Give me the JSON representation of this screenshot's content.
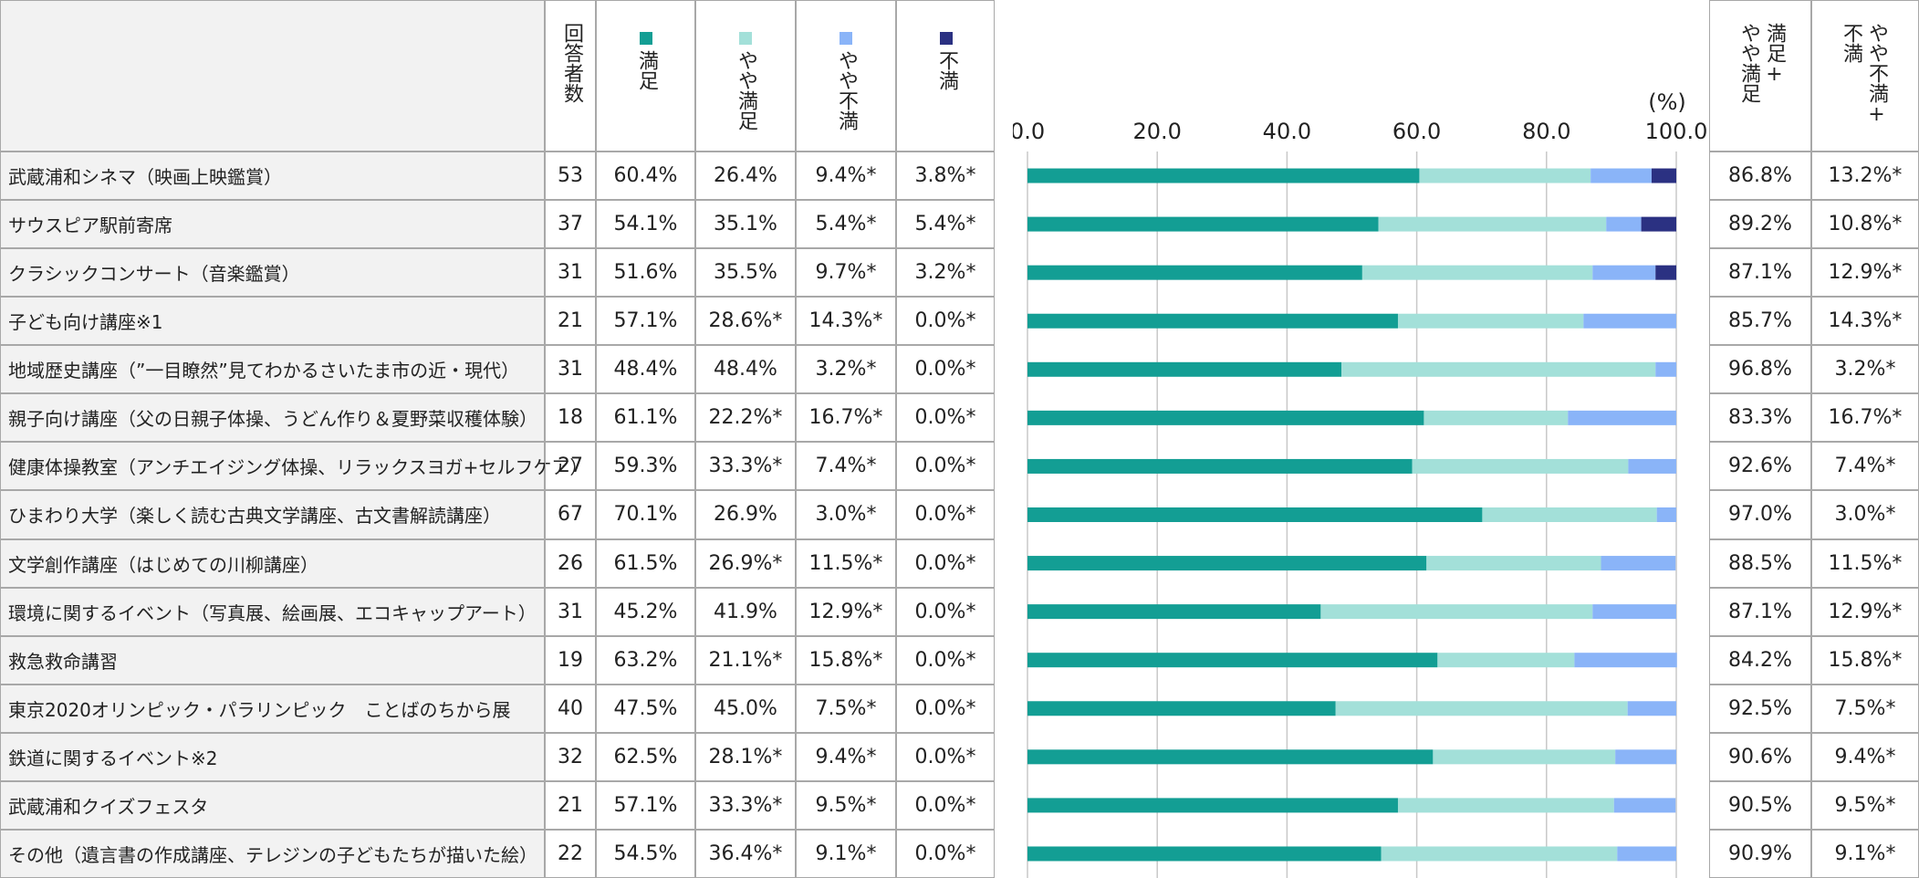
{
  "table": {
    "headers": {
      "n": "回答者数",
      "sum_good": "満足+\nやや満足",
      "sum_bad": "やや不満+\n不満"
    },
    "series": [
      {
        "name": "満足",
        "color": "#139e94"
      },
      {
        "name": "やや満足",
        "color": "#a3e0d9"
      },
      {
        "name": "やや不満",
        "color": "#8ab4f8"
      },
      {
        "name": "不満",
        "color": "#2b3182"
      }
    ],
    "chart": {
      "unit": "(%)",
      "xlim": [
        0,
        100
      ],
      "xticks": [
        {
          "value": 0,
          "label": "0.0"
        },
        {
          "value": 20,
          "label": "20.0"
        },
        {
          "value": 40,
          "label": "40.0"
        },
        {
          "value": 60,
          "label": "60.0"
        },
        {
          "value": 80,
          "label": "80.0"
        },
        {
          "value": 100,
          "label": "100.0"
        }
      ],
      "grid": true
    },
    "rows": [
      {
        "label": "武蔵浦和シネマ（映画上映鑑賞）",
        "n": 53,
        "values": [
          60.4,
          26.4,
          9.4,
          3.8
        ],
        "value_labels": [
          "60.4%",
          "26.4%",
          "9.4%*",
          "3.8%*"
        ],
        "sum_good": "86.8%",
        "sum_bad": "13.2%*"
      },
      {
        "label": "サウスピア駅前寄席",
        "n": 37,
        "values": [
          54.1,
          35.1,
          5.4,
          5.4
        ],
        "value_labels": [
          "54.1%",
          "35.1%",
          "5.4%*",
          "5.4%*"
        ],
        "sum_good": "89.2%",
        "sum_bad": "10.8%*"
      },
      {
        "label": "クラシックコンサート（音楽鑑賞）",
        "n": 31,
        "values": [
          51.6,
          35.5,
          9.7,
          3.2
        ],
        "value_labels": [
          "51.6%",
          "35.5%",
          "9.7%*",
          "3.2%*"
        ],
        "sum_good": "87.1%",
        "sum_bad": "12.9%*"
      },
      {
        "label": "子ども向け講座※1",
        "n": 21,
        "values": [
          57.1,
          28.6,
          14.3,
          0.0
        ],
        "value_labels": [
          "57.1%",
          "28.6%*",
          "14.3%*",
          "0.0%*"
        ],
        "sum_good": "85.7%",
        "sum_bad": "14.3%*"
      },
      {
        "label": "地域歴史講座（”一目瞭然”見てわかるさいたま市の近・現代）",
        "n": 31,
        "values": [
          48.4,
          48.4,
          3.2,
          0.0
        ],
        "value_labels": [
          "48.4%",
          "48.4%",
          "3.2%*",
          "0.0%*"
        ],
        "sum_good": "96.8%",
        "sum_bad": "3.2%*"
      },
      {
        "label": "親子向け講座（父の日親子体操、うどん作り＆夏野菜収穫体験）",
        "n": 18,
        "values": [
          61.1,
          22.2,
          16.7,
          0.0
        ],
        "value_labels": [
          "61.1%",
          "22.2%*",
          "16.7%*",
          "0.0%*"
        ],
        "sum_good": "83.3%",
        "sum_bad": "16.7%*"
      },
      {
        "label": "健康体操教室（アンチエイジング体操、リラックスヨガ+セルフケア）",
        "n": 27,
        "values": [
          59.3,
          33.3,
          7.4,
          0.0
        ],
        "value_labels": [
          "59.3%",
          "33.3%*",
          "7.4%*",
          "0.0%*"
        ],
        "sum_good": "92.6%",
        "sum_bad": "7.4%*"
      },
      {
        "label": "ひまわり大学（楽しく読む古典文学講座、古文書解読講座）",
        "n": 67,
        "values": [
          70.1,
          26.9,
          3.0,
          0.0
        ],
        "value_labels": [
          "70.1%",
          "26.9%",
          "3.0%*",
          "0.0%*"
        ],
        "sum_good": "97.0%",
        "sum_bad": "3.0%*"
      },
      {
        "label": "文学創作講座（はじめての川柳講座）",
        "n": 26,
        "values": [
          61.5,
          26.9,
          11.5,
          0.0
        ],
        "value_labels": [
          "61.5%",
          "26.9%*",
          "11.5%*",
          "0.0%*"
        ],
        "sum_good": "88.5%",
        "sum_bad": "11.5%*"
      },
      {
        "label": "環境に関するイベント（写真展、絵画展、エコキャップアート）",
        "n": 31,
        "values": [
          45.2,
          41.9,
          12.9,
          0.0
        ],
        "value_labels": [
          "45.2%",
          "41.9%",
          "12.9%*",
          "0.0%*"
        ],
        "sum_good": "87.1%",
        "sum_bad": "12.9%*"
      },
      {
        "label": "救急救命講習",
        "n": 19,
        "values": [
          63.2,
          21.1,
          15.8,
          0.0
        ],
        "value_labels": [
          "63.2%",
          "21.1%*",
          "15.8%*",
          "0.0%*"
        ],
        "sum_good": "84.2%",
        "sum_bad": "15.8%*"
      },
      {
        "label": "東京2020オリンピック・パラリンピック　ことばのちから展",
        "n": 40,
        "values": [
          47.5,
          45.0,
          7.5,
          0.0
        ],
        "value_labels": [
          "47.5%",
          "45.0%",
          "7.5%*",
          "0.0%*"
        ],
        "sum_good": "92.5%",
        "sum_bad": "7.5%*"
      },
      {
        "label": "鉄道に関するイベント※2",
        "n": 32,
        "values": [
          62.5,
          28.1,
          9.4,
          0.0
        ],
        "value_labels": [
          "62.5%",
          "28.1%*",
          "9.4%*",
          "0.0%*"
        ],
        "sum_good": "90.6%",
        "sum_bad": "9.4%*"
      },
      {
        "label": "武蔵浦和クイズフェスタ",
        "n": 21,
        "values": [
          57.1,
          33.3,
          9.5,
          0.0
        ],
        "value_labels": [
          "57.1%",
          "33.3%*",
          "9.5%*",
          "0.0%*"
        ],
        "sum_good": "90.5%",
        "sum_bad": "9.5%*"
      },
      {
        "label": "その他（遺言書の作成講座、テレジンの子どもたちが描いた絵）",
        "n": 22,
        "values": [
          54.5,
          36.4,
          9.1,
          0.0
        ],
        "value_labels": [
          "54.5%",
          "36.4%*",
          "9.1%*",
          "0.0%*"
        ],
        "sum_good": "90.9%",
        "sum_bad": "9.1%*"
      }
    ]
  }
}
